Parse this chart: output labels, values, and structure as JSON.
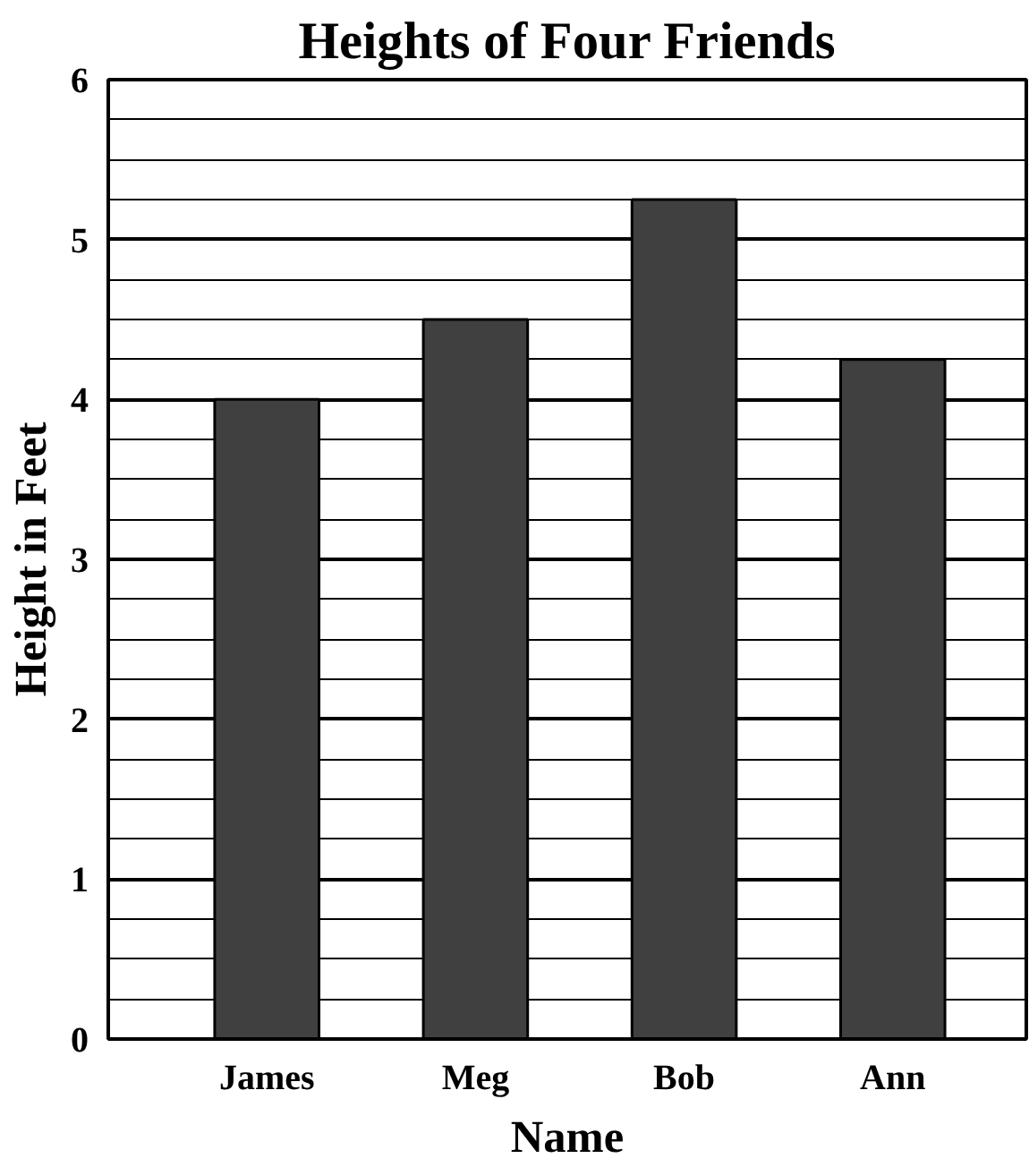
{
  "chart_data": {
    "type": "bar",
    "title": "Heights of Four Friends",
    "xlabel": "Name",
    "ylabel": "Height in Feet",
    "categories": [
      "James",
      "Meg",
      "Bob",
      "Ann"
    ],
    "values": [
      4,
      4.5,
      5.25,
      4.25
    ],
    "color": "#404040",
    "ylim": [
      0,
      6
    ],
    "yticks": [
      0,
      {
        "value": 0.25,
        "label": null
      },
      {
        "value": 0.5,
        "label": null
      },
      {
        "value": 0.75,
        "label": null
      },
      1,
      {
        "value": 1.25,
        "label": null
      },
      {
        "value": 1.5,
        "label": null
      },
      {
        "value": 1.75,
        "label": null
      },
      2,
      {
        "value": 2.25,
        "label": null
      },
      {
        "value": 2.5,
        "label": null
      },
      {
        "value": 2.75,
        "label": null
      },
      3,
      {
        "value": 3.25,
        "label": null
      },
      {
        "value": 3.5,
        "label": null
      },
      {
        "value": 3.75,
        "label": null
      },
      4,
      {
        "value": 4.25,
        "label": null
      },
      {
        "value": 4.5,
        "label": null
      },
      {
        "value": 4.75,
        "label": null
      },
      5,
      {
        "value": 5.25,
        "label": null
      },
      {
        "value": 5.5,
        "label": null
      },
      {
        "value": 5.75,
        "label": null
      },
      6
    ],
    "grid": "y"
  }
}
